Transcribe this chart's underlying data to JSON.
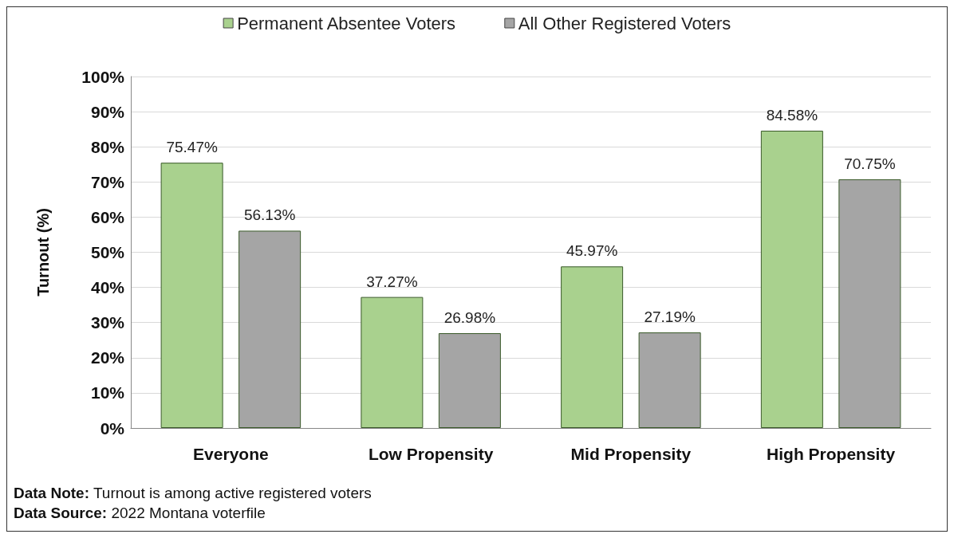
{
  "chart_data": {
    "type": "bar",
    "ylabel": "Turnout (%)",
    "categories": [
      "Everyone",
      "Low Propensity",
      "Mid Propensity",
      "High Propensity"
    ],
    "series": [
      {
        "name": "Permanent Absentee Voters",
        "color": "#a9d18e",
        "values": [
          75.47,
          37.27,
          45.97,
          84.58
        ],
        "value_labels": [
          "75.47%",
          "37.27%",
          "45.97%",
          "84.58%"
        ]
      },
      {
        "name": "All Other Registered Voters",
        "color": "#a5a5a5",
        "values": [
          56.13,
          26.98,
          27.19,
          70.75
        ],
        "value_labels": [
          "56.13%",
          "26.98%",
          "27.19%",
          "70.75%"
        ]
      }
    ],
    "ylim": [
      0,
      100
    ],
    "yticks": [
      {
        "value": 0,
        "label": "0%"
      },
      {
        "value": 10,
        "label": "10%"
      },
      {
        "value": 20,
        "label": "20%"
      },
      {
        "value": 30,
        "label": "30%"
      },
      {
        "value": 40,
        "label": "40%"
      },
      {
        "value": 50,
        "label": "50%"
      },
      {
        "value": 60,
        "label": "60%"
      },
      {
        "value": 70,
        "label": "70%"
      },
      {
        "value": 80,
        "label": "80%"
      },
      {
        "value": 90,
        "label": "90%"
      },
      {
        "value": 100,
        "label": "100%"
      }
    ],
    "grid": "y",
    "legend": "top",
    "annotations": [
      "Data Note: Turnout is among active registered voters",
      "Data Source: 2022 Montana voterfile"
    ]
  }
}
